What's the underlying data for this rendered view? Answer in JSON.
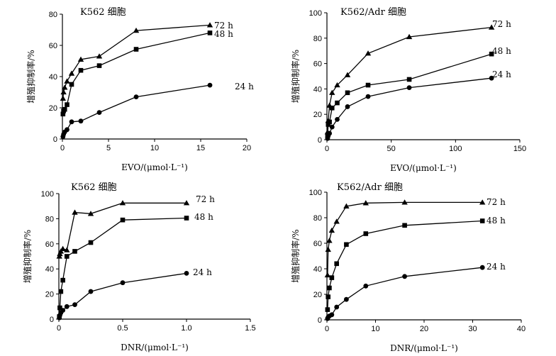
{
  "chart_data": [
    {
      "type": "line",
      "title": "K562 细胞",
      "xlabel": "EVO/(μmol·L⁻¹)",
      "ylabel": "增殖抑制率/%",
      "xlim": [
        0,
        20
      ],
      "ylim": [
        0,
        80
      ],
      "xticks": [
        "0",
        "5",
        "10",
        "15",
        "20"
      ],
      "yticks": [
        "0",
        "20",
        "40",
        "60",
        "80"
      ],
      "series": [
        {
          "name": "24 h",
          "marker": "circle",
          "x": [
            0.0625,
            0.125,
            0.25,
            0.5,
            1,
            2,
            4,
            8,
            16
          ],
          "y": [
            1.5,
            3,
            4.5,
            6,
            11,
            11.5,
            17,
            27,
            34.5
          ]
        },
        {
          "name": "48 h",
          "marker": "square",
          "x": [
            0.0625,
            0.125,
            0.25,
            0.5,
            1,
            2,
            4,
            8,
            16
          ],
          "y": [
            16,
            18,
            19,
            22,
            35,
            44,
            47,
            57.5,
            68
          ]
        },
        {
          "name": "72 h",
          "marker": "triangle",
          "x": [
            0.0625,
            0.125,
            0.25,
            0.5,
            1,
            2,
            4,
            8,
            16
          ],
          "y": [
            26,
            30,
            33,
            37,
            42,
            51,
            53,
            69.5,
            73
          ]
        }
      ]
    },
    {
      "type": "line",
      "title": "K562/Adr 细胞",
      "xlabel": "EVO/(μmol·L⁻¹)",
      "ylabel": "增殖抑制率/%",
      "xlim": [
        0,
        150
      ],
      "ylim": [
        0,
        100
      ],
      "xticks": [
        "0",
        "50",
        "100",
        "150"
      ],
      "yticks": [
        "0",
        "20",
        "40",
        "60",
        "80",
        "100"
      ],
      "series": [
        {
          "name": "24 h",
          "marker": "circle",
          "x": [
            0.5,
            1,
            2,
            4,
            8,
            16,
            32,
            64,
            128
          ],
          "y": [
            1,
            3,
            5,
            10,
            16,
            26,
            34,
            41,
            48.5
          ]
        },
        {
          "name": "48 h",
          "marker": "square",
          "x": [
            0.5,
            1,
            2,
            4,
            8,
            16,
            32,
            64,
            128
          ],
          "y": [
            3,
            12,
            14,
            25,
            29,
            37,
            43,
            47.5,
            67.5
          ]
        },
        {
          "name": "72 h",
          "marker": "triangle",
          "x": [
            0.5,
            1,
            2,
            4,
            8,
            16,
            32,
            64,
            128
          ],
          "y": [
            6,
            15,
            27,
            37,
            43,
            51,
            68,
            81,
            88.5
          ]
        }
      ]
    },
    {
      "type": "line",
      "title": "K562 细胞",
      "xlabel": "DNR/(μmol·L⁻¹)",
      "ylabel": "增殖抑制率/%",
      "xlim": [
        0,
        1.5
      ],
      "ylim": [
        0,
        100
      ],
      "xticks": [
        "0",
        "0.5",
        "1.0",
        "1.5"
      ],
      "yticks": [
        "0",
        "20",
        "40",
        "60",
        "80",
        "100"
      ],
      "series": [
        {
          "name": "24 h",
          "marker": "circle",
          "x": [
            0.00390625,
            0.0078125,
            0.015625,
            0.03125,
            0.0625,
            0.125,
            0.25,
            0.5,
            1
          ],
          "y": [
            1,
            3,
            5,
            7,
            10,
            11.5,
            22,
            29,
            36.5
          ]
        },
        {
          "name": "48 h",
          "marker": "square",
          "x": [
            0.00390625,
            0.0078125,
            0.015625,
            0.03125,
            0.0625,
            0.125,
            0.25,
            0.5,
            1
          ],
          "y": [
            2,
            9,
            22,
            31,
            50,
            54,
            61,
            79,
            80.5
          ]
        },
        {
          "name": "72 h",
          "marker": "triangle",
          "x": [
            0.00390625,
            0.0078125,
            0.015625,
            0.03125,
            0.0625,
            0.125,
            0.25,
            0.5,
            1
          ],
          "y": [
            50,
            52,
            54,
            56,
            55,
            85,
            84,
            92.5,
            92.5
          ]
        }
      ]
    },
    {
      "type": "line",
      "title": "K562/Adr 细胞",
      "xlabel": "DNR/(μmol·L⁻¹)",
      "ylabel": "增殖抑制率/%",
      "xlim": [
        0,
        40
      ],
      "ylim": [
        0,
        100
      ],
      "xticks": [
        "0",
        "10",
        "20",
        "30",
        "40"
      ],
      "yticks": [
        "0",
        "20",
        "40",
        "60",
        "80",
        "100"
      ],
      "series": [
        {
          "name": "24 h",
          "marker": "circle",
          "x": [
            0.125,
            0.25,
            0.5,
            1,
            2,
            4,
            8,
            16,
            32
          ],
          "y": [
            1,
            2,
            3,
            4,
            10,
            16,
            26.5,
            34,
            41
          ]
        },
        {
          "name": "48 h",
          "marker": "square",
          "x": [
            0.125,
            0.25,
            0.5,
            1,
            2,
            4,
            8,
            16,
            32
          ],
          "y": [
            8,
            18,
            25,
            33,
            44,
            59,
            67.5,
            74,
            77.5
          ]
        },
        {
          "name": "72 h",
          "marker": "triangle",
          "x": [
            0.125,
            0.25,
            0.5,
            1,
            2,
            4,
            8,
            16,
            32
          ],
          "y": [
            35,
            55,
            62,
            70,
            77,
            89,
            91.5,
            92,
            92
          ]
        }
      ]
    }
  ]
}
